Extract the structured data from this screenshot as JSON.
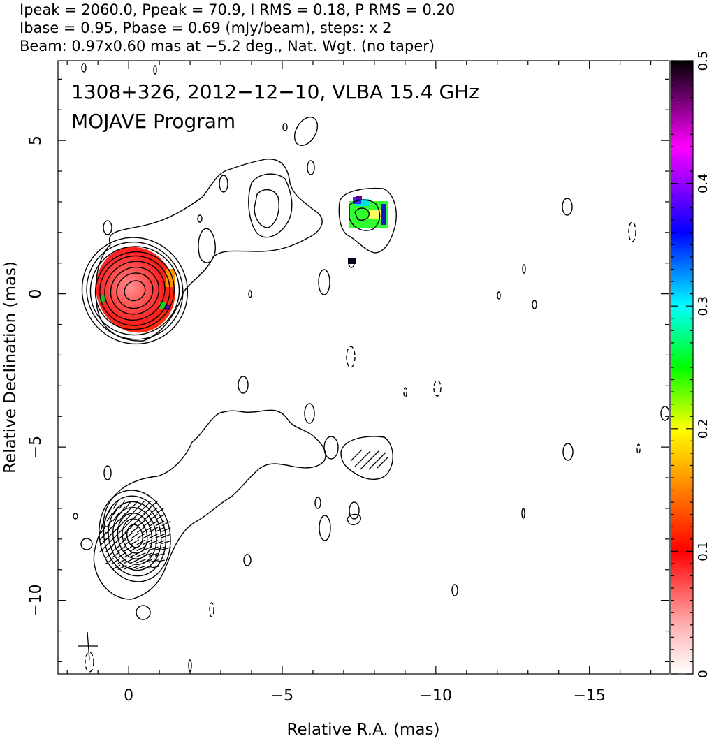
{
  "header": {
    "line1": "Ipeak = 2060.0, Ppeak = 70.9, I RMS = 0.18, P RMS = 0.20",
    "line2": "Ibase = 0.95, Pbase = 0.69 (mJy/beam), steps: x 2",
    "line3": "Beam: 0.97x0.60 mas at −5.2 deg., Nat. Wgt. (no taper)"
  },
  "annotation": {
    "line1": "1308+326, 2012−12−10, VLBA 15.4 GHz",
    "line2": "MOJAVE Program"
  },
  "chart_data": {
    "type": "contour",
    "xlabel": "Relative R.A. (mas)",
    "ylabel": "Relative Declination (mas)",
    "xlim": [
      2.3,
      -17.6
    ],
    "ylim": [
      -12.4,
      7.6
    ],
    "x_ticks": [
      0,
      -5,
      -10,
      -15
    ],
    "x_tick_labels": [
      "0",
      "−5",
      "−10",
      "−15"
    ],
    "y_ticks": [
      5,
      0,
      -5,
      -10
    ],
    "y_tick_labels": [
      "5",
      "0",
      "−5",
      "−10"
    ],
    "colorbar": {
      "range": [
        0,
        0.5
      ],
      "ticks": [
        0,
        0.1,
        0.2,
        0.3,
        0.4,
        0.5
      ],
      "tick_labels": [
        "0",
        "0.1",
        "0.2",
        "0.3",
        "0.4",
        "0.5"
      ],
      "colormap": [
        "#ffffff",
        "#ffb0b0",
        "#ff0000",
        "#ff8000",
        "#ffff00",
        "#00ff00",
        "#00ffff",
        "#0000ff",
        "#ff00ff",
        "#000000"
      ]
    },
    "upper_panel": {
      "core_center": [
        -0.2,
        0.1
      ],
      "core_ellipse_radii": [
        [
          0.35,
          0.25
        ],
        [
          0.6,
          0.45
        ],
        [
          0.8,
          0.6
        ],
        [
          1.0,
          0.75
        ],
        [
          1.15,
          0.9
        ],
        [
          1.3,
          1.0
        ],
        [
          1.45,
          1.15
        ],
        [
          1.55,
          1.28
        ],
        [
          1.7,
          1.4
        ]
      ],
      "core_polarization_fraction": 0.08,
      "jet_component_center": [
        -7.5,
        2.6
      ],
      "jet_component_polarization_fraction": 0.27
    },
    "lower_panel": {
      "core_center": [
        -0.2,
        -7.9
      ],
      "core_ellipse_radii": [
        [
          0.25,
          0.3
        ],
        [
          0.4,
          0.45
        ],
        [
          0.55,
          0.6
        ],
        [
          0.7,
          0.75
        ],
        [
          0.85,
          0.9
        ],
        [
          1.0,
          1.05
        ],
        [
          1.15,
          1.2
        ]
      ],
      "knot_center": [
        -7.9,
        -5.5
      ]
    },
    "beam": {
      "major": 0.97,
      "minor": 0.6,
      "pa_deg": -5.2
    }
  },
  "colors": {
    "contour": "#000000",
    "background": "#ffffff"
  }
}
